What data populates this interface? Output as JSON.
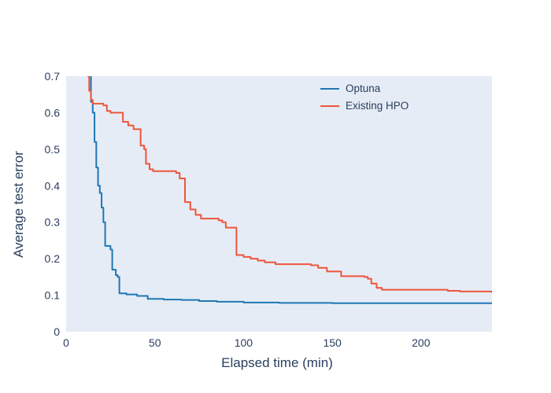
{
  "chart_data": {
    "type": "line",
    "step_mode": "hv",
    "title": "",
    "xlabel": "Elapsed time (min)",
    "ylabel": "Average test error",
    "xlim": [
      0,
      240
    ],
    "ylim": [
      0,
      0.7
    ],
    "xticks": [
      0,
      50,
      100,
      150,
      200
    ],
    "xtick_labels": [
      "0",
      "50",
      "100",
      "150",
      "200"
    ],
    "yticks": [
      0,
      0.1,
      0.2,
      0.3,
      0.4,
      0.5,
      0.6,
      0.7
    ],
    "ytick_labels": [
      "0",
      "0.1",
      "0.2",
      "0.3",
      "0.4",
      "0.5",
      "0.6",
      "0.7"
    ],
    "grid": false,
    "legend_position": "top-right-inside",
    "colors": {
      "plot_bg": "#e5ecf6",
      "paper_bg": "#ffffff",
      "text": "#2a3f5f"
    },
    "series": [
      {
        "name": "Optuna",
        "color": "#1f77b4",
        "x": [
          13,
          14,
          15,
          16,
          17,
          18,
          19,
          20,
          21,
          22,
          25,
          26,
          28,
          29,
          30,
          34,
          40,
          46,
          55,
          65,
          75,
          85,
          100,
          120,
          150,
          240
        ],
        "y": [
          0.7,
          0.63,
          0.6,
          0.52,
          0.45,
          0.4,
          0.38,
          0.34,
          0.3,
          0.235,
          0.225,
          0.17,
          0.155,
          0.15,
          0.105,
          0.102,
          0.098,
          0.09,
          0.088,
          0.087,
          0.084,
          0.082,
          0.08,
          0.079,
          0.078,
          0.078
        ]
      },
      {
        "name": "Existing HPO",
        "color": "#ef553b",
        "x": [
          12,
          13,
          14,
          15,
          21,
          23,
          25,
          32,
          35,
          38,
          42,
          44,
          45,
          47,
          49,
          62,
          64,
          67,
          70,
          73,
          76,
          86,
          88,
          90,
          95,
          96,
          100,
          104,
          108,
          112,
          118,
          138,
          142,
          147,
          155,
          168,
          170,
          172,
          175,
          178,
          215,
          222,
          240
        ],
        "y": [
          0.7,
          0.66,
          0.635,
          0.625,
          0.62,
          0.605,
          0.6,
          0.575,
          0.565,
          0.555,
          0.51,
          0.5,
          0.46,
          0.445,
          0.44,
          0.435,
          0.42,
          0.355,
          0.335,
          0.32,
          0.31,
          0.305,
          0.3,
          0.285,
          0.285,
          0.21,
          0.205,
          0.2,
          0.195,
          0.19,
          0.185,
          0.182,
          0.175,
          0.165,
          0.152,
          0.15,
          0.145,
          0.132,
          0.12,
          0.115,
          0.112,
          0.11,
          0.107
        ]
      }
    ]
  }
}
